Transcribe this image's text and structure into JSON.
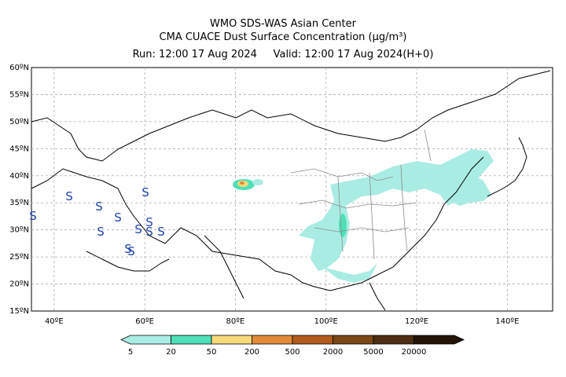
{
  "header": {
    "line1": "WMO SDS-WAS Asian Center",
    "line2": "CMA CUACE Dust Surface Concentration (µg/m³)",
    "run_label": "Run: 12:00 17 Aug 2024",
    "valid_label": "Valid: 12:00 17 Aug 2024(H+0)"
  },
  "axes": {
    "lat_ticks": [
      "60ºN",
      "55ºN",
      "50ºN",
      "45ºN",
      "40ºN",
      "35ºN",
      "30ºN",
      "25ºN",
      "20ºN",
      "15ºN"
    ],
    "lon_ticks": [
      "40ºE",
      "60ºE",
      "80ºE",
      "100ºE",
      "120ºE",
      "140ºE"
    ]
  },
  "legend": {
    "levels": [
      "5",
      "20",
      "50",
      "200",
      "500",
      "2000",
      "5000",
      "20000"
    ],
    "colors": [
      "#a9ece3",
      "#4fe0b8",
      "#f5d97b",
      "#e08a3a",
      "#b35a1d",
      "#7a4716",
      "#4e2e12",
      "#241408"
    ]
  },
  "symbols": {
    "storm_marker": "S",
    "color": "#2244aa"
  }
}
